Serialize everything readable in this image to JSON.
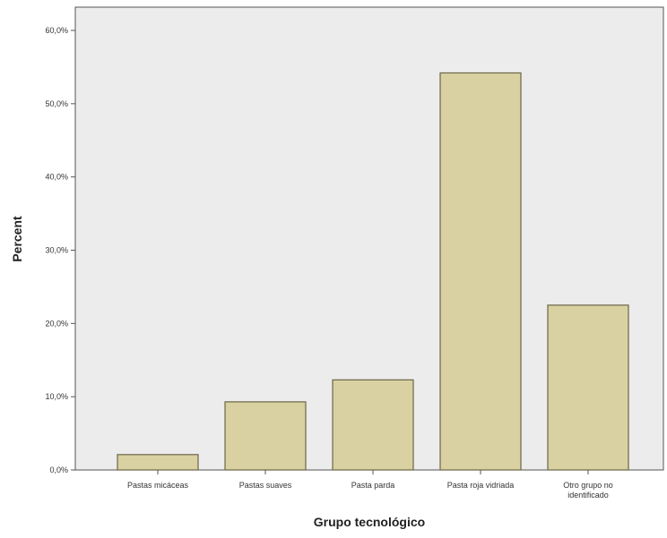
{
  "chart_data": {
    "type": "bar",
    "title": "",
    "xlabel": "Grupo tecnológico",
    "ylabel": "Percent",
    "categories": [
      [
        "Pastas micáceas"
      ],
      [
        "Pastas suaves"
      ],
      [
        "Pasta parda"
      ],
      [
        "Pasta roja vidriada"
      ],
      [
        "Otro grupo no",
        "identificado"
      ]
    ],
    "values": [
      2.1,
      9.3,
      12.3,
      54.2,
      22.5
    ],
    "ylim": [
      0,
      60
    ],
    "yticks": [
      "0,0%",
      "10,0%",
      "20,0%",
      "30,0%",
      "40,0%",
      "50,0%",
      "60,0%"
    ],
    "grid": false,
    "legend": "none",
    "colors": {
      "bar_fill": "#d9d1a1",
      "bar_stroke": "#6b6648",
      "plot_background": "#ececec",
      "axis": "#555555"
    }
  }
}
